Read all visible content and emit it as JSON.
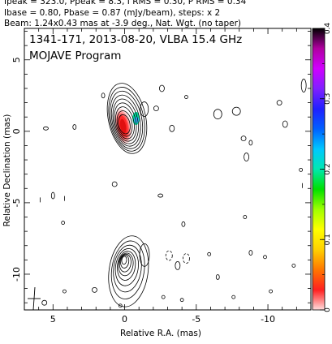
{
  "header": {
    "line1": "Ipeak = 323.0, Ppeak = 8.3, I RMS = 0.30, P RMS = 0.34",
    "line2": "Ibase = 0.80, Pbase = 0.87 (mJy/beam), steps: x 2",
    "line3": "Beam: 1.24x0.43 mas at -3.9 deg., Nat. Wgt. (no taper)"
  },
  "plot": {
    "title_line1": "1341-171, 2013-08-20, VLBA 15.4 GHz",
    "title_line2": "MOJAVE Program"
  },
  "chart_data": {
    "type": "heatmap",
    "xlabel": "Relative R.A. (mas)",
    "ylabel": "Relative Declination (mas)",
    "xlim": [
      7,
      -13
    ],
    "ylim": [
      -12.5,
      7.2
    ],
    "x_ticks": [
      5,
      0,
      -5,
      -10
    ],
    "y_ticks": [
      5,
      0,
      -5,
      -10
    ],
    "colorbar": {
      "ticks": [
        0,
        0.1,
        0.2,
        0.3,
        0.4
      ],
      "range": [
        0,
        0.4
      ],
      "colors": [
        "#ffdede",
        "#ff2020",
        "#ff7700",
        "#ffd000",
        "#ffff00",
        "#9fff00",
        "#00e000",
        "#00e8b0",
        "#00c8ff",
        "#0060ff",
        "#2020ff",
        "#8020ff",
        "#d000ff",
        "#b000a0",
        "#000000"
      ]
    },
    "core": {
      "x": 0.1,
      "y": 0.3
    },
    "pol_feature": {
      "x": -0.8,
      "y": 0.9
    },
    "lower_component": {
      "x": 0.2,
      "y": -9.0
    }
  }
}
